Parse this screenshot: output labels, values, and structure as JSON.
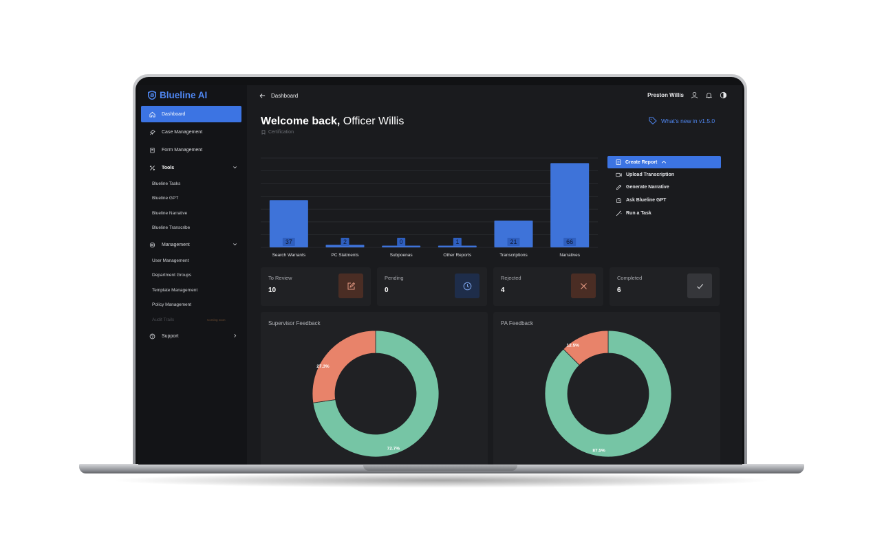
{
  "app": {
    "brand": "Blueline AI",
    "accent": "#3c74e3",
    "brand_color": "#4f86f0"
  },
  "sidebar": {
    "items": [
      {
        "label": "Dashboard",
        "icon": "home-icon",
        "active": true
      },
      {
        "label": "Case Management",
        "icon": "pin-icon"
      },
      {
        "label": "Form Management",
        "icon": "clipboard-icon"
      },
      {
        "label": "Tools",
        "icon": "tools-icon",
        "expanded": true,
        "subitems": [
          "Blueline Tasks",
          "Blueline GPT",
          "Blueline Narrative",
          "Blueline Transcribe"
        ]
      },
      {
        "label": "Management",
        "icon": "gear-icon",
        "expanded": true,
        "subitems": [
          "User Management",
          "Department Groups",
          "Template Management",
          "Policy Management"
        ]
      },
      {
        "label": "Support",
        "icon": "help-icon"
      }
    ],
    "audit": {
      "label": "Audit Trails",
      "badge": "Coming soon"
    }
  },
  "topbar": {
    "breadcrumb": "Dashboard",
    "user_name": "Preston Willis"
  },
  "header": {
    "welcome_bold": "Welcome back,",
    "welcome_name": "Officer Willis",
    "subtitle": "Certification",
    "whats_new": "What's new in v1.5.0"
  },
  "chart_data": {
    "type": "bar",
    "categories": [
      "Search Warrants",
      "PC Statments",
      "Subpoenas",
      "Other Reports",
      "Transcriptions",
      "Narratives"
    ],
    "values": [
      37,
      2,
      0,
      1,
      21,
      66
    ],
    "ylim": [
      0,
      70
    ],
    "grid": true,
    "bar_color": "#3e73d9"
  },
  "quick_actions": {
    "primary": "Create Report",
    "items": [
      {
        "label": "Upload Transcription",
        "icon": "video-upload-icon"
      },
      {
        "label": "Generate Narrative",
        "icon": "pen-icon"
      },
      {
        "label": "Ask Blueline GPT",
        "icon": "robot-icon"
      },
      {
        "label": "Run a Task",
        "icon": "wand-icon"
      }
    ]
  },
  "stats": [
    {
      "label": "To Review",
      "value": "10",
      "icon": "edit-icon",
      "bg": "#4a2d24",
      "color": "#e69a84"
    },
    {
      "label": "Pending",
      "value": "0",
      "icon": "clock-icon",
      "bg": "#1e2d4a",
      "color": "#7fa6ee"
    },
    {
      "label": "Rejected",
      "value": "4",
      "icon": "x-icon",
      "bg": "#4a2d24",
      "color": "#e69a84"
    },
    {
      "label": "Completed",
      "value": "6",
      "icon": "check-icon",
      "bg": "#35363a",
      "color": "#d5d6d9"
    }
  ],
  "feedback": [
    {
      "title": "Supervisor Feedback",
      "segments": [
        {
          "label": "72.7%",
          "value": 72.7,
          "color": "#76c5a5"
        },
        {
          "label": "27.3%",
          "value": 27.3,
          "color": "#e8836a"
        }
      ]
    },
    {
      "title": "PA Feedback",
      "segments": [
        {
          "label": "87.5%",
          "value": 87.5,
          "color": "#76c5a5"
        },
        {
          "label": "12.5%",
          "value": 12.5,
          "color": "#e8836a"
        }
      ]
    }
  ]
}
